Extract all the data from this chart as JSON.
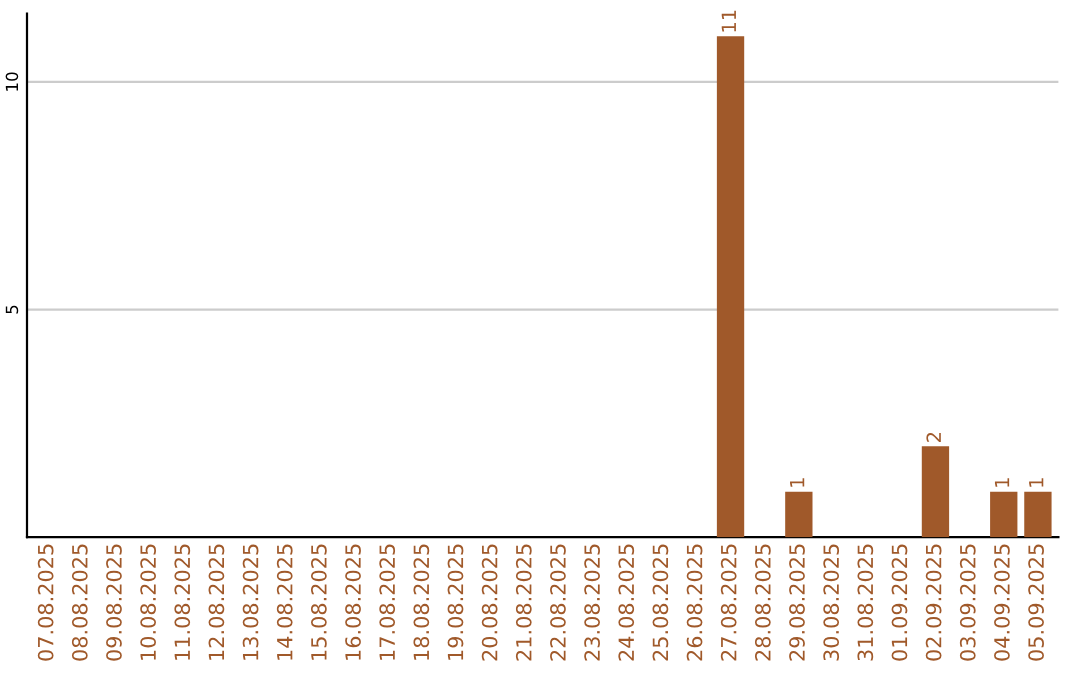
{
  "chart_data": {
    "type": "bar",
    "categories": [
      "07.08.2025",
      "08.08.2025",
      "09.08.2025",
      "10.08.2025",
      "11.08.2025",
      "12.08.2025",
      "13.08.2025",
      "14.08.2025",
      "15.08.2025",
      "16.08.2025",
      "17.08.2025",
      "18.08.2025",
      "19.08.2025",
      "20.08.2025",
      "21.08.2025",
      "22.08.2025",
      "23.08.2025",
      "24.08.2025",
      "25.08.2025",
      "26.08.2025",
      "27.08.2025",
      "28.08.2025",
      "29.08.2025",
      "30.08.2025",
      "31.08.2025",
      "01.09.2025",
      "02.09.2025",
      "03.09.2025",
      "04.09.2025",
      "05.09.2025"
    ],
    "values": [
      0,
      0,
      0,
      0,
      0,
      0,
      0,
      0,
      0,
      0,
      0,
      0,
      0,
      0,
      0,
      0,
      0,
      0,
      0,
      0,
      11,
      0,
      1,
      0,
      0,
      0,
      2,
      0,
      1,
      1
    ],
    "value_labels": [
      null,
      null,
      null,
      null,
      null,
      null,
      null,
      null,
      null,
      null,
      null,
      null,
      null,
      null,
      null,
      null,
      null,
      null,
      null,
      null,
      "11",
      null,
      "1",
      null,
      null,
      null,
      "2",
      null,
      "1",
      "1"
    ],
    "color": "#a0592a",
    "ylim": [
      0,
      11.5
    ],
    "yticks": [
      5,
      10
    ],
    "grid": "y"
  }
}
